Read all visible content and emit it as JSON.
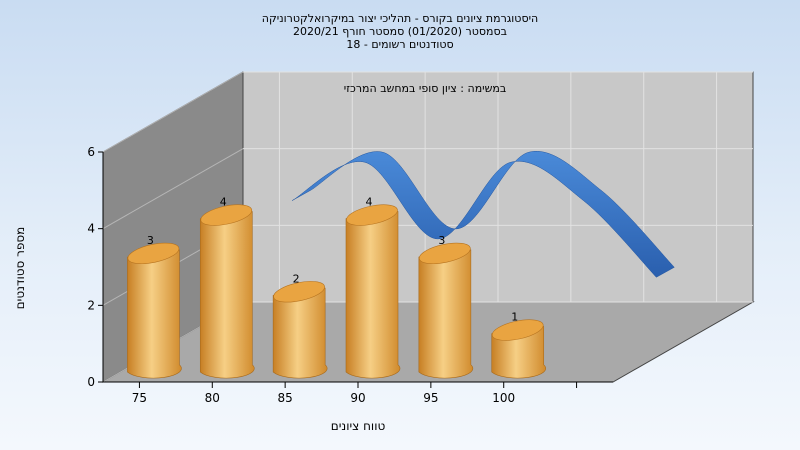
{
  "chart_data": {
    "type": "bar",
    "title_lines": [
      "היסטוגרמת ציונים בקורס - תהליכי יצור במיקרואלקטרוניקה",
      "בסמסטר  (01/2020)  סמסטר חורף  2020/21",
      "סטודנטים רשומים - 18"
    ],
    "annotation": "במשימה : ציון סופי במחשב המרכזי",
    "xlabel": "טווח ציונים",
    "ylabel": "מספר סטודנטים",
    "categories": [
      "75",
      "80",
      "85",
      "90",
      "95",
      "100"
    ],
    "values": [
      3,
      4,
      2,
      4,
      3,
      1
    ],
    "ylim": [
      0,
      6
    ],
    "yticks": [
      "0",
      "2",
      "4",
      "6"
    ],
    "grid": true,
    "series": [
      {
        "type": "bar",
        "values": [
          3,
          4,
          2,
          4,
          3,
          1
        ],
        "color": "#e8a53e"
      },
      {
        "type": "line",
        "values": [
          3,
          4,
          2,
          4,
          3,
          1
        ],
        "color": "#2f6ec2"
      }
    ]
  }
}
